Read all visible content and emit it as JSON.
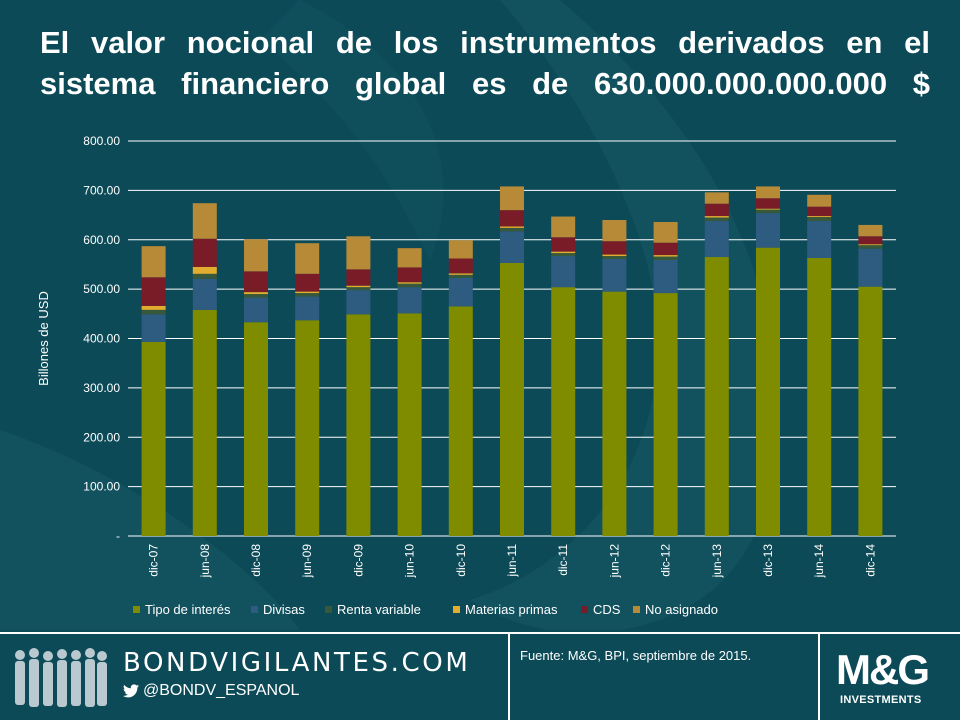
{
  "title": "El valor nocional de los instrumentos derivados en el sistema financiero global es de 630.000.000.000.000 $",
  "chart_data": {
    "type": "bar",
    "stacked": true,
    "ylabel": "Billones de USD",
    "ylim": [
      0,
      800
    ],
    "yticks": [
      "-",
      "100.00",
      "200.00",
      "300.00",
      "400.00",
      "500.00",
      "600.00",
      "700.00",
      "800.00"
    ],
    "grid": true,
    "legend_position": "bottom",
    "categories": [
      "dic-07",
      "jun-08",
      "dic-08",
      "jun-09",
      "dic-09",
      "jun-10",
      "dic-10",
      "jun-11",
      "dic-11",
      "jun-12",
      "dic-12",
      "jun-13",
      "dic-13",
      "jun-14",
      "dic-14"
    ],
    "series": [
      {
        "name": "Tipo de interés",
        "color": "#808c00",
        "values": [
          393,
          458,
          433,
          437,
          449,
          451,
          465,
          553,
          504,
          495,
          492,
          565,
          584,
          563,
          505
        ]
      },
      {
        "name": "Divisas",
        "color": "#2d5c80",
        "values": [
          56,
          63,
          50,
          48,
          49,
          53,
          58,
          64,
          63,
          66,
          67,
          73,
          70,
          75,
          77
        ]
      },
      {
        "name": "Renta variable",
        "color": "#37583a",
        "values": [
          9,
          10,
          7,
          7,
          6,
          7,
          6,
          7,
          6,
          6,
          7,
          7,
          7,
          8,
          7
        ]
      },
      {
        "name": "Materias primas",
        "color": "#e2ad2e",
        "values": [
          8,
          14,
          4,
          3,
          3,
          3,
          3,
          3,
          3,
          3,
          3,
          3,
          2,
          2,
          2
        ]
      },
      {
        "name": "CDS",
        "color": "#7a1c28",
        "values": [
          58,
          57,
          42,
          36,
          33,
          30,
          30,
          33,
          29,
          27,
          25,
          25,
          21,
          19,
          16
        ]
      },
      {
        "name": "No asignado",
        "color": "#b78a38",
        "values": [
          63,
          72,
          65,
          62,
          67,
          39,
          37,
          48,
          42,
          43,
          42,
          23,
          24,
          24,
          23
        ]
      }
    ]
  },
  "footer": {
    "brand": "BONDVIGILANTES.COM",
    "handle": "@BONDV_ESPANOL",
    "source": "Fuente: M&G, BPI, septiembre de 2015.",
    "logo_main": "M&G",
    "logo_sub": "INVESTMENTS"
  }
}
